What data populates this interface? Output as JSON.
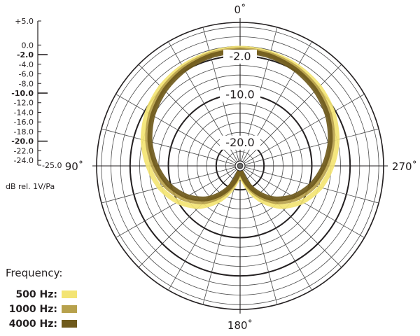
{
  "chart_data": {
    "type": "polar",
    "title": "",
    "unit_label": "dB rel. 1V/Pa",
    "rlim": [
      -25.0,
      5.0
    ],
    "scale_ticks": [
      "+5.0",
      "0.0",
      "-2.0",
      "-4.0",
      "-6.0",
      "-8.0",
      "-10.0",
      "-12.0",
      "-14.0",
      "-16.0",
      "-18.0",
      "-20.0",
      "-22.0",
      "-24.0",
      "-25.0"
    ],
    "scale_major": [
      "-2.0",
      "-10.0",
      "-20.0"
    ],
    "ring_labels": [
      "-2.0",
      "-10.0",
      "-20.0"
    ],
    "angle_labels": {
      "top": "0˚",
      "left": "90˚",
      "right": "270˚",
      "bottom": "180˚"
    },
    "angles_deg": [
      0,
      15,
      30,
      45,
      60,
      75,
      90,
      105,
      120,
      135,
      150,
      165,
      180,
      195,
      210,
      225,
      240,
      255,
      270,
      285,
      300,
      315,
      330,
      345
    ],
    "legend_title": "Frequency:",
    "series": [
      {
        "name": "500 Hz:",
        "color": "#f3e473",
        "values": [
          -0.4,
          -0.6,
          -1.0,
          -1.6,
          -2.6,
          -4.0,
          -5.8,
          -7.6,
          -10.0,
          -13.0,
          -17.0,
          -21.5,
          -24.0,
          -21.5,
          -17.0,
          -13.0,
          -10.0,
          -7.6,
          -5.8,
          -4.0,
          -2.6,
          -1.6,
          -1.0,
          -0.6
        ]
      },
      {
        "name": "1000 Hz:",
        "color": "#b7a14c",
        "values": [
          -0.7,
          -0.9,
          -1.4,
          -2.2,
          -3.4,
          -5.0,
          -6.9,
          -8.9,
          -11.4,
          -14.4,
          -18.3,
          -22.5,
          -24.5,
          -22.5,
          -18.3,
          -14.4,
          -11.4,
          -8.9,
          -6.9,
          -5.0,
          -3.4,
          -2.2,
          -1.4,
          -0.9
        ]
      },
      {
        "name": "4000 Hz:",
        "color": "#6f5a1c",
        "values": [
          -1.0,
          -1.2,
          -1.8,
          -2.7,
          -3.9,
          -5.5,
          -7.5,
          -9.6,
          -12.2,
          -15.3,
          -19.1,
          -23.0,
          -24.8,
          -23.0,
          -19.1,
          -15.3,
          -12.2,
          -9.6,
          -7.5,
          -5.5,
          -3.9,
          -2.7,
          -1.8,
          -1.2
        ]
      }
    ]
  }
}
